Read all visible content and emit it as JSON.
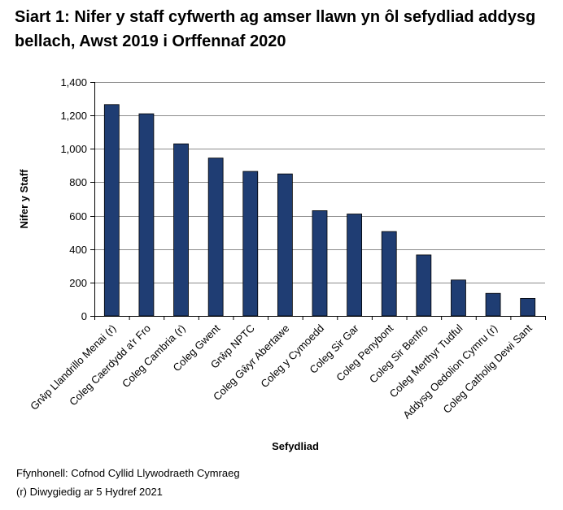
{
  "chart_data": {
    "type": "bar",
    "title": "Siart 1: Nifer y staff cyfwerth ag amser llawn yn ôl sefydliad addysg bellach, Awst 2019 i Orffennaf 2020",
    "xlabel": "Sefydliad",
    "ylabel": "Nifer y Staff",
    "ylim": [
      0,
      1400
    ],
    "yticks": [
      0,
      200,
      400,
      600,
      800,
      1000,
      1200,
      1400
    ],
    "ytick_labels": [
      "0",
      "200",
      "400",
      "600",
      "800",
      "1,000",
      "1,200",
      "1,400"
    ],
    "grid": true,
    "legend": "none",
    "bar_color": "#1f3d73",
    "categories": [
      "Grŵp Llandrillo Menai (r)",
      "Coleg Caerdydd a'r Fro",
      "Coleg Cambria (r)",
      "Coleg Gwent",
      "Grŵp NPTC",
      "Coleg Gŵyr Abertawe",
      "Coleg y Cymoedd",
      "Coleg Sir Gar",
      "Coleg Penybont",
      "Coleg Sir Benfro",
      "Coleg Merthyr Tudful",
      "Addysg Oedolion Cymru (r)",
      "Coleg Catholig Dewi Sant"
    ],
    "values": [
      1265,
      1210,
      1030,
      945,
      865,
      850,
      630,
      610,
      505,
      365,
      215,
      135,
      105
    ]
  },
  "footnotes": {
    "source": "Ffynhonell: Cofnod Cyllid Llywodraeth Cymraeg",
    "revised": "(r) Diwygiedig ar 5 Hydref 2021"
  }
}
